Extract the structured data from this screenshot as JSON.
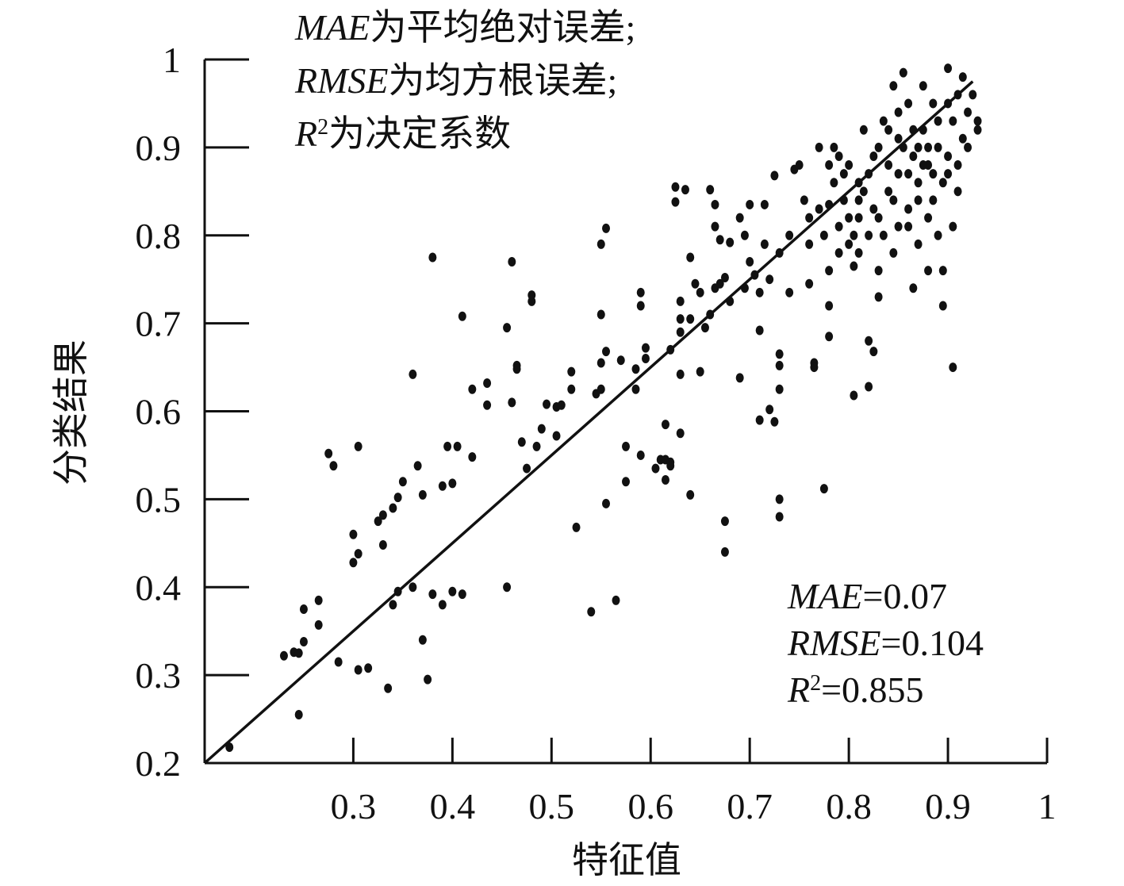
{
  "chart_data": {
    "type": "scatter",
    "x_label": "特征值",
    "y_label": "分类结果",
    "xlim": [
      0.15,
      1.0
    ],
    "xticks": [
      0.3,
      0.4,
      0.5,
      0.6,
      0.7,
      0.8,
      0.9,
      1.0
    ],
    "ylim": [
      0.2,
      1.0
    ],
    "yticks": [
      0.2,
      0.3,
      0.4,
      0.5,
      0.6,
      0.7,
      0.8,
      0.9,
      1.0
    ],
    "color": "#111111",
    "notes": [
      {
        "symbol": "MAE",
        "text": "为平均绝对误差;"
      },
      {
        "symbol": "RMSE",
        "text": "为均方根误差;"
      },
      {
        "symbol": "R",
        "sup": "2",
        "text": "为决定系数"
      }
    ],
    "stats": [
      {
        "symbol": "MAE",
        "text": "=0.07"
      },
      {
        "symbol": "RMSE",
        "text": "=0.104"
      },
      {
        "symbol": "R",
        "sup": "2",
        "text": "=0.855"
      }
    ],
    "fit_line": {
      "x": [
        0.15,
        0.925
      ],
      "y": [
        0.2,
        0.975
      ]
    },
    "x": [
      0.175,
      0.23,
      0.24,
      0.245,
      0.245,
      0.25,
      0.25,
      0.265,
      0.265,
      0.275,
      0.28,
      0.285,
      0.3,
      0.3,
      0.305,
      0.305,
      0.305,
      0.315,
      0.325,
      0.33,
      0.33,
      0.335,
      0.34,
      0.34,
      0.345,
      0.345,
      0.35,
      0.36,
      0.36,
      0.365,
      0.37,
      0.37,
      0.375,
      0.38,
      0.38,
      0.39,
      0.39,
      0.395,
      0.4,
      0.4,
      0.405,
      0.41,
      0.41,
      0.42,
      0.42,
      0.435,
      0.435,
      0.455,
      0.455,
      0.46,
      0.46,
      0.465,
      0.465,
      0.47,
      0.475,
      0.48,
      0.48,
      0.485,
      0.49,
      0.495,
      0.505,
      0.505,
      0.51,
      0.52,
      0.52,
      0.525,
      0.54,
      0.545,
      0.55,
      0.55,
      0.55,
      0.55,
      0.555,
      0.555,
      0.555,
      0.565,
      0.57,
      0.575,
      0.575,
      0.585,
      0.585,
      0.59,
      0.59,
      0.59,
      0.595,
      0.595,
      0.605,
      0.61,
      0.615,
      0.615,
      0.615,
      0.62,
      0.62,
      0.62,
      0.625,
      0.625,
      0.63,
      0.63,
      0.63,
      0.63,
      0.63,
      0.635,
      0.64,
      0.64,
      0.64,
      0.645,
      0.65,
      0.65,
      0.655,
      0.66,
      0.66,
      0.665,
      0.665,
      0.665,
      0.67,
      0.67,
      0.675,
      0.675,
      0.675,
      0.68,
      0.68,
      0.69,
      0.69,
      0.695,
      0.695,
      0.7,
      0.7,
      0.705,
      0.71,
      0.71,
      0.71,
      0.715,
      0.715,
      0.72,
      0.72,
      0.725,
      0.725,
      0.73,
      0.73,
      0.73,
      0.73,
      0.73,
      0.73,
      0.74,
      0.74,
      0.745,
      0.75,
      0.755,
      0.76,
      0.76,
      0.765,
      0.765,
      0.77,
      0.775,
      0.78,
      0.78,
      0.78,
      0.78,
      0.785,
      0.79,
      0.795,
      0.8,
      0.805,
      0.805,
      0.81,
      0.81,
      0.815,
      0.82,
      0.82,
      0.82,
      0.825,
      0.825,
      0.83,
      0.83,
      0.835,
      0.84,
      0.845,
      0.845,
      0.85,
      0.85,
      0.855,
      0.86,
      0.86,
      0.865,
      0.865,
      0.87,
      0.87,
      0.875,
      0.875,
      0.88,
      0.88,
      0.885,
      0.885,
      0.89,
      0.89,
      0.895,
      0.895,
      0.9,
      0.9,
      0.905,
      0.905,
      0.905,
      0.91,
      0.91,
      0.915,
      0.92,
      0.92,
      0.925,
      0.93,
      0.93,
      0.76,
      0.77,
      0.775,
      0.785,
      0.79,
      0.795,
      0.8,
      0.8,
      0.805,
      0.81,
      0.815,
      0.82,
      0.825,
      0.83,
      0.835,
      0.84,
      0.84,
      0.845,
      0.85,
      0.855,
      0.86,
      0.865,
      0.87,
      0.87,
      0.875,
      0.88,
      0.88,
      0.885,
      0.89,
      0.895,
      0.9,
      0.9,
      0.91,
      0.915,
      0.86,
      0.85,
      0.83,
      0.81,
      0.79,
      0.78
    ],
    "y": [
      0.218,
      0.322,
      0.326,
      0.325,
      0.255,
      0.338,
      0.375,
      0.385,
      0.357,
      0.552,
      0.538,
      0.315,
      0.428,
      0.46,
      0.438,
      0.56,
      0.306,
      0.308,
      0.475,
      0.448,
      0.482,
      0.285,
      0.49,
      0.38,
      0.502,
      0.395,
      0.52,
      0.4,
      0.642,
      0.538,
      0.505,
      0.34,
      0.295,
      0.392,
      0.775,
      0.515,
      0.38,
      0.56,
      0.518,
      0.395,
      0.56,
      0.708,
      0.392,
      0.625,
      0.548,
      0.632,
      0.607,
      0.695,
      0.4,
      0.77,
      0.61,
      0.652,
      0.648,
      0.565,
      0.535,
      0.725,
      0.732,
      0.56,
      0.58,
      0.608,
      0.572,
      0.605,
      0.607,
      0.645,
      0.625,
      0.468,
      0.372,
      0.62,
      0.71,
      0.655,
      0.625,
      0.79,
      0.808,
      0.668,
      0.495,
      0.385,
      0.658,
      0.56,
      0.52,
      0.625,
      0.648,
      0.55,
      0.735,
      0.72,
      0.66,
      0.672,
      0.535,
      0.545,
      0.585,
      0.522,
      0.545,
      0.542,
      0.67,
      0.538,
      0.855,
      0.838,
      0.575,
      0.642,
      0.69,
      0.705,
      0.725,
      0.852,
      0.775,
      0.505,
      0.705,
      0.745,
      0.735,
      0.645,
      0.695,
      0.71,
      0.852,
      0.835,
      0.81,
      0.74,
      0.795,
      0.745,
      0.475,
      0.44,
      0.752,
      0.725,
      0.792,
      0.638,
      0.82,
      0.8,
      0.74,
      0.835,
      0.77,
      0.755,
      0.59,
      0.692,
      0.735,
      0.835,
      0.79,
      0.602,
      0.75,
      0.868,
      0.588,
      0.48,
      0.5,
      0.625,
      0.652,
      0.665,
      0.78,
      0.8,
      0.735,
      0.875,
      0.88,
      0.84,
      0.745,
      0.82,
      0.655,
      0.65,
      0.9,
      0.512,
      0.685,
      0.72,
      0.76,
      0.835,
      0.9,
      0.81,
      0.87,
      0.79,
      0.618,
      0.765,
      0.84,
      0.86,
      0.92,
      0.628,
      0.68,
      0.8,
      0.668,
      0.89,
      0.73,
      0.82,
      0.93,
      0.85,
      0.78,
      0.97,
      0.87,
      0.91,
      0.985,
      0.83,
      0.95,
      0.74,
      0.89,
      0.79,
      0.86,
      0.92,
      0.97,
      0.76,
      0.88,
      0.84,
      0.95,
      0.9,
      0.8,
      0.72,
      0.76,
      0.99,
      0.87,
      0.65,
      0.81,
      0.93,
      0.96,
      0.85,
      0.98,
      0.9,
      0.94,
      0.96,
      0.92,
      0.93,
      0.79,
      0.83,
      0.8,
      0.86,
      0.78,
      0.84,
      0.82,
      0.88,
      0.8,
      0.78,
      0.85,
      0.87,
      0.83,
      0.9,
      0.8,
      0.88,
      0.92,
      0.84,
      0.81,
      0.9,
      0.87,
      0.92,
      0.84,
      0.9,
      0.88,
      0.9,
      0.82,
      0.87,
      0.93,
      0.86,
      0.89,
      0.95,
      0.88,
      0.91,
      0.81,
      0.94,
      0.76,
      0.82,
      0.89,
      0.88
    ]
  }
}
